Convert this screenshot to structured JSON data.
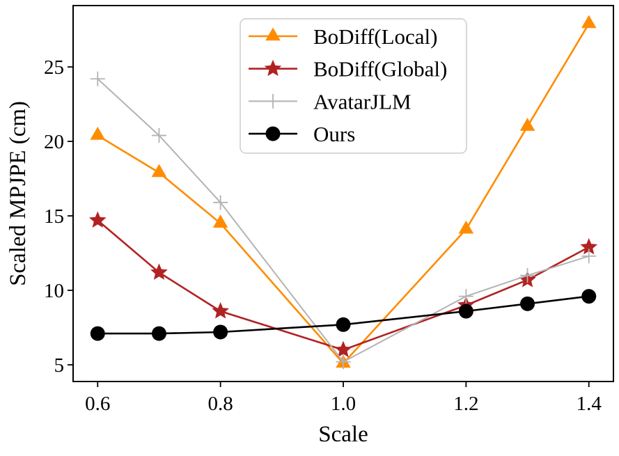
{
  "figure": {
    "background": "#ffffff"
  },
  "chart_data": {
    "type": "line",
    "title": "",
    "xlabel": "Scale",
    "ylabel": "Scaled MPJPE (cm)",
    "xlim": [
      0.56,
      1.44
    ],
    "ylim": [
      3.88,
      29.12
    ],
    "grid": false,
    "legend_position": "upper center-left inside plot",
    "x": [
      0.6,
      0.7,
      0.8,
      1.0,
      1.2,
      1.3,
      1.4
    ],
    "xticks": {
      "positions": [
        0.6,
        0.8,
        1.0,
        1.2,
        1.4
      ],
      "labels": [
        "0.6",
        "0.8",
        "1.0",
        "1.2",
        "1.4"
      ]
    },
    "yticks": {
      "positions": [
        5,
        10,
        15,
        20,
        25
      ],
      "labels": [
        "5",
        "10",
        "15",
        "20",
        "25"
      ]
    },
    "series": [
      {
        "name": "BoDiff(Local)",
        "color": "#FF8C00",
        "marker": "triangle",
        "values": [
          20.4,
          17.9,
          14.5,
          5.1,
          14.1,
          21.0,
          27.9
        ]
      },
      {
        "name": "BoDiff(Global)",
        "color": "#B22222",
        "marker": "star",
        "values": [
          14.7,
          11.2,
          8.6,
          6.0,
          9.0,
          10.7,
          12.9
        ]
      },
      {
        "name": "AvatarJLM",
        "color": "#B3B3B3",
        "marker": "plus",
        "values": [
          24.2,
          20.4,
          15.9,
          5.2,
          9.6,
          11.0,
          12.3
        ]
      },
      {
        "name": "Ours",
        "color": "#000000",
        "marker": "circle",
        "values": [
          7.1,
          7.1,
          7.2,
          7.7,
          8.6,
          9.1,
          9.6
        ]
      }
    ],
    "axis_color": "#000000"
  }
}
